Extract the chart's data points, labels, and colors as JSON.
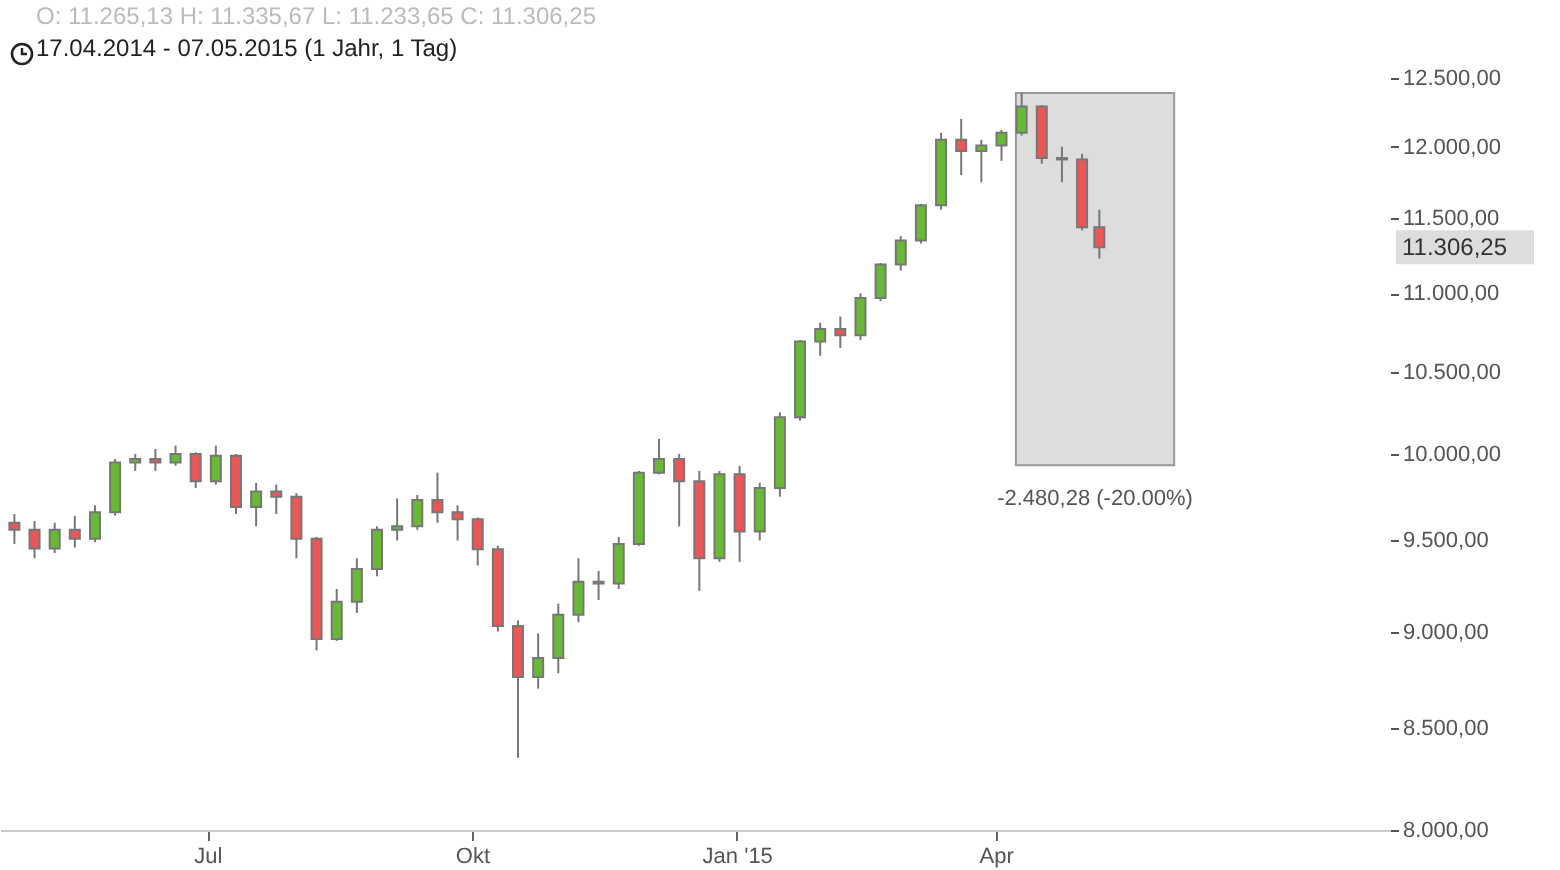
{
  "chart_data": {
    "type": "candlestick",
    "title": "O: 11.265,13  H: 11.335,67  L: 11.233,65  C: 11.306,25",
    "subtitle": "17.04.2014 - 07.05.2015 (1 Jahr, 1 Tag)",
    "x": [
      "2014-04-25",
      "2014-05-02",
      "2014-05-09",
      "2014-05-16",
      "2014-05-23",
      "2014-05-30",
      "2014-06-06",
      "2014-06-13",
      "2014-06-20",
      "2014-06-27",
      "2014-07-04",
      "2014-07-11",
      "2014-07-18",
      "2014-07-25",
      "2014-08-01",
      "2014-08-08",
      "2014-08-15",
      "2014-08-22",
      "2014-08-29",
      "2014-09-05",
      "2014-09-12",
      "2014-09-19",
      "2014-09-26",
      "2014-10-03",
      "2014-10-10",
      "2014-10-17",
      "2014-10-24",
      "2014-10-31",
      "2014-11-07",
      "2014-11-14",
      "2014-11-21",
      "2014-11-28",
      "2014-12-05",
      "2014-12-12",
      "2014-12-19",
      "2014-12-26",
      "2015-01-02",
      "2015-01-09",
      "2015-01-16",
      "2015-01-23",
      "2015-01-30",
      "2015-02-06",
      "2015-02-13",
      "2015-02-20",
      "2015-02-27",
      "2015-03-06",
      "2015-03-13",
      "2015-03-20",
      "2015-03-27",
      "2015-04-03",
      "2015-04-10",
      "2015-04-17",
      "2015-04-24",
      "2015-05-01",
      "2015-05-07"
    ],
    "ohlc": [
      [
        9600,
        9650,
        9480,
        9560
      ],
      [
        9560,
        9610,
        9400,
        9455
      ],
      [
        9455,
        9600,
        9430,
        9560
      ],
      [
        9560,
        9640,
        9460,
        9510
      ],
      [
        9510,
        9700,
        9490,
        9660
      ],
      [
        9660,
        9970,
        9640,
        9950
      ],
      [
        9950,
        10000,
        9900,
        9970
      ],
      [
        9970,
        10030,
        9900,
        9950
      ],
      [
        9950,
        10050,
        9930,
        10000
      ],
      [
        10000,
        10010,
        9800,
        9840
      ],
      [
        9840,
        10050,
        9820,
        9990
      ],
      [
        9990,
        10000,
        9650,
        9690
      ],
      [
        9690,
        9830,
        9580,
        9780
      ],
      [
        9780,
        9820,
        9650,
        9750
      ],
      [
        9750,
        9770,
        9400,
        9510
      ],
      [
        9510,
        9520,
        8900,
        8960
      ],
      [
        8960,
        9230,
        8950,
        9160
      ],
      [
        9160,
        9400,
        9100,
        9340
      ],
      [
        9340,
        9580,
        9300,
        9560
      ],
      [
        9560,
        9740,
        9500,
        9580
      ],
      [
        9580,
        9760,
        9560,
        9730
      ],
      [
        9730,
        9890,
        9600,
        9660
      ],
      [
        9660,
        9700,
        9500,
        9620
      ],
      [
        9620,
        9630,
        9360,
        9450
      ],
      [
        9450,
        9470,
        9000,
        9030
      ],
      [
        9030,
        9060,
        8350,
        8760
      ],
      [
        8760,
        8990,
        8700,
        8860
      ],
      [
        8860,
        9150,
        8780,
        9090
      ],
      [
        9090,
        9400,
        9050,
        9270
      ],
      [
        9270,
        9330,
        9170,
        9260
      ],
      [
        9260,
        9520,
        9230,
        9480
      ],
      [
        9480,
        9900,
        9470,
        9890
      ],
      [
        9890,
        10090,
        9880,
        9970
      ],
      [
        9970,
        10000,
        9580,
        9840
      ],
      [
        9840,
        9900,
        9220,
        9400
      ],
      [
        9400,
        9900,
        9380,
        9880
      ],
      [
        9880,
        9930,
        9380,
        9550
      ],
      [
        9550,
        9830,
        9500,
        9800
      ],
      [
        9800,
        10250,
        9750,
        10220
      ],
      [
        10220,
        10700,
        10200,
        10690
      ],
      [
        10690,
        10810,
        10600,
        10770
      ],
      [
        10770,
        10850,
        10650,
        10730
      ],
      [
        10730,
        11000,
        10700,
        10970
      ],
      [
        10970,
        11200,
        10950,
        11190
      ],
      [
        11190,
        11380,
        11150,
        11350
      ],
      [
        11350,
        11600,
        11330,
        11590
      ],
      [
        11590,
        12100,
        11560,
        12050
      ],
      [
        12050,
        12200,
        11800,
        11970
      ],
      [
        11970,
        12050,
        11750,
        12010
      ],
      [
        12010,
        12120,
        11900,
        12100
      ],
      [
        12100,
        12390,
        12080,
        12290
      ],
      [
        12290,
        12300,
        11880,
        11920
      ],
      [
        11920,
        12000,
        11750,
        11910
      ],
      [
        11910,
        11950,
        11420,
        11440
      ],
      [
        11440,
        11560,
        11230,
        11306.25
      ]
    ],
    "colors": [
      "#ee5555",
      "#ee5555",
      "#66bb33",
      "#ee5555",
      "#66bb33",
      "#66bb33",
      "#66bb33",
      "#ee5555",
      "#66bb33",
      "#ee5555",
      "#66bb33",
      "#ee5555",
      "#66bb33",
      "#ee5555",
      "#ee5555",
      "#ee5555",
      "#66bb33",
      "#66bb33",
      "#66bb33",
      "#66bb33",
      "#66bb33",
      "#ee5555",
      "#ee5555",
      "#ee5555",
      "#ee5555",
      "#ee5555",
      "#66bb33",
      "#66bb33",
      "#66bb33",
      "#ee5555",
      "#66bb33",
      "#66bb33",
      "#66bb33",
      "#ee5555",
      "#ee5555",
      "#66bb33",
      "#ee5555",
      "#66bb33",
      "#66bb33",
      "#66bb33",
      "#66bb33",
      "#ee5555",
      "#66bb33",
      "#66bb33",
      "#66bb33",
      "#66bb33",
      "#66bb33",
      "#ee5555",
      "#66bb33",
      "#66bb33",
      "#66bb33",
      "#ee5555",
      "#ee5555",
      "#ee5555",
      "#ee5555"
    ],
    "xlim": [
      "2014-04-20",
      "2015-08-16"
    ],
    "xticks": [
      {
        "value": "2014-07-01",
        "label": "Jul"
      },
      {
        "value": "2014-10-01",
        "label": "Okt"
      },
      {
        "value": "2015-01-01",
        "label": "Jan '15"
      },
      {
        "value": "2015-04-01",
        "label": "Apr"
      }
    ],
    "log": true,
    "ylim": [
      8000,
      12500
    ],
    "yticks": [
      {
        "value": 8000,
        "label": "8.000,00"
      },
      {
        "value": 8500,
        "label": "8.500,00"
      },
      {
        "value": 9000,
        "label": "9.000,00"
      },
      {
        "value": 9500,
        "label": "9.500,00"
      },
      {
        "value": 10000,
        "label": "10.000,00"
      },
      {
        "value": 10500,
        "label": "10.500,00"
      },
      {
        "value": 11000,
        "label": "11.000,00"
      },
      {
        "value": 11500,
        "label": "11.500,00"
      },
      {
        "value": 12000,
        "label": "12.000,00"
      },
      {
        "value": 12500,
        "label": "12.500,00"
      }
    ],
    "bands": [
      {
        "axis": "x",
        "from": "2015-04-08",
        "to": "2015-06-02",
        "label": "-2.480,28 (-20.00%)",
        "color": "#dddddd"
      }
    ],
    "annotations": [
      "11.306,25"
    ]
  }
}
